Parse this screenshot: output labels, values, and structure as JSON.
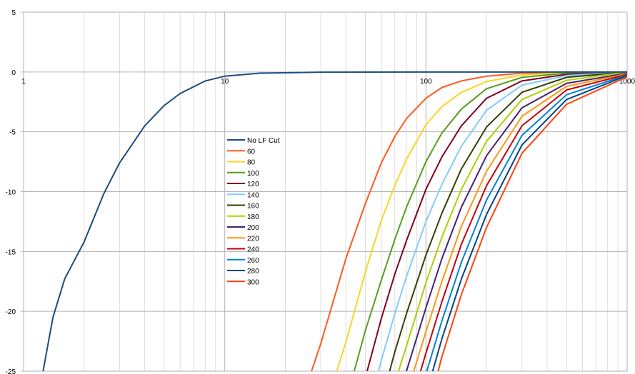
{
  "chart_data": {
    "type": "line",
    "title": "",
    "xlabel": "",
    "ylabel": "",
    "x_scale": "log",
    "xlim": [
      1,
      1000
    ],
    "ylim": [
      -25,
      5
    ],
    "x_ticks": [
      {
        "value": 1,
        "label": "1"
      },
      {
        "value": 10,
        "label": "10"
      },
      {
        "value": 100,
        "label": "100"
      },
      {
        "value": 1000,
        "label": "1000"
      }
    ],
    "y_ticks": [
      {
        "value": 5,
        "label": "5"
      },
      {
        "value": 0,
        "label": "0"
      },
      {
        "value": -5,
        "label": "-5"
      },
      {
        "value": -10,
        "label": "-10"
      },
      {
        "value": -15,
        "label": "-15"
      },
      {
        "value": -20,
        "label": "-20"
      },
      {
        "value": -25,
        "label": "-25"
      }
    ],
    "grid": true,
    "legend_position": "center",
    "series": [
      {
        "name": "No LF Cut",
        "color": "#1a4d80",
        "x": [
          1.25,
          1.4,
          1.6,
          2,
          2.5,
          3,
          4,
          5,
          6,
          8,
          10,
          15,
          30,
          100,
          1000
        ],
        "y": [
          -25,
          -20.5,
          -17.3,
          -14.2,
          -10.2,
          -7.6,
          -4.5,
          -2.8,
          -1.8,
          -0.75,
          -0.35,
          -0.1,
          -0.02,
          0,
          0
        ]
      },
      {
        "name": "60",
        "color": "#ff5a1f",
        "x": [
          27,
          30,
          40,
          50,
          60,
          70,
          80,
          100,
          120,
          150,
          200,
          300,
          500,
          1000
        ],
        "y": [
          -25,
          -22.7,
          -15.6,
          -11.0,
          -7.6,
          -5.4,
          -3.9,
          -2.2,
          -1.3,
          -0.75,
          -0.35,
          -0.1,
          -0.03,
          0
        ]
      },
      {
        "name": "80",
        "color": "#ffd320",
        "x": [
          36,
          40,
          50,
          60,
          70,
          80,
          100,
          120,
          150,
          200,
          300,
          500,
          1000
        ],
        "y": [
          -25,
          -22.6,
          -16.7,
          -12.4,
          -9.5,
          -7.3,
          -4.4,
          -2.9,
          -1.7,
          -0.8,
          -0.25,
          -0.07,
          0
        ]
      },
      {
        "name": "100",
        "color": "#579d1c",
        "x": [
          44,
          50,
          60,
          70,
          80,
          100,
          120,
          150,
          200,
          300,
          500,
          1000
        ],
        "y": [
          -25,
          -21.6,
          -17.4,
          -14.0,
          -11.3,
          -7.5,
          -5.1,
          -3.1,
          -1.4,
          -0.45,
          -0.1,
          0
        ]
      },
      {
        "name": "120",
        "color": "#7e0021",
        "x": [
          51,
          60,
          70,
          80,
          100,
          120,
          150,
          200,
          300,
          500,
          1000
        ],
        "y": [
          -25,
          -20.6,
          -16.9,
          -14.1,
          -9.8,
          -7.1,
          -4.5,
          -2.2,
          -0.75,
          -0.2,
          0
        ]
      },
      {
        "name": "140",
        "color": "#83caff",
        "x": [
          58,
          60,
          70,
          80,
          100,
          120,
          150,
          200,
          300,
          500,
          1000
        ],
        "y": [
          -25,
          -24.1,
          -20.2,
          -17.1,
          -12.5,
          -9.4,
          -6.2,
          -3.2,
          -1.1,
          -0.3,
          0
        ]
      },
      {
        "name": "160",
        "color": "#314004",
        "x": [
          66,
          70,
          80,
          100,
          120,
          150,
          200,
          300,
          500,
          1000
        ],
        "y": [
          -25,
          -23.4,
          -20.2,
          -15.3,
          -11.8,
          -8.1,
          -4.6,
          -1.7,
          -0.45,
          0
        ]
      },
      {
        "name": "180",
        "color": "#aecf00",
        "x": [
          73,
          80,
          100,
          120,
          150,
          200,
          300,
          500,
          1000
        ],
        "y": [
          -25,
          -22.9,
          -17.6,
          -13.8,
          -9.8,
          -5.8,
          -2.3,
          -0.7,
          0
        ]
      },
      {
        "name": "200",
        "color": "#4b1f6f",
        "x": [
          80,
          100,
          120,
          150,
          200,
          300,
          500,
          1000
        ],
        "y": [
          -25,
          -19.7,
          -15.6,
          -11.3,
          -7.0,
          -3.0,
          -0.95,
          -0.1
        ]
      },
      {
        "name": "220",
        "color": "#ff950e",
        "x": [
          87,
          100,
          120,
          150,
          200,
          300,
          500,
          1000
        ],
        "y": [
          -25,
          -21.7,
          -17.5,
          -12.9,
          -8.3,
          -3.7,
          -1.2,
          -0.15
        ]
      },
      {
        "name": "240",
        "color": "#c5000b",
        "x": [
          94,
          100,
          120,
          150,
          200,
          300,
          500,
          1000
        ],
        "y": [
          -25,
          -23.5,
          -19.2,
          -14.4,
          -9.5,
          -4.5,
          -1.5,
          -0.2
        ]
      },
      {
        "name": "260",
        "color": "#0084d1",
        "x": [
          101,
          120,
          150,
          200,
          300,
          500,
          1000
        ],
        "y": [
          -25,
          -20.8,
          -15.9,
          -10.7,
          -5.3,
          -1.9,
          -0.25
        ]
      },
      {
        "name": "280",
        "color": "#004586",
        "x": [
          108,
          120,
          150,
          200,
          300,
          500,
          1000
        ],
        "y": [
          -25,
          -22.3,
          -17.3,
          -11.9,
          -6.1,
          -2.3,
          -0.3
        ]
      },
      {
        "name": "300",
        "color": "#ff420e",
        "x": [
          115,
          120,
          150,
          200,
          300,
          500,
          1000
        ],
        "y": [
          -25,
          -23.8,
          -18.6,
          -13.0,
          -6.8,
          -2.7,
          -0.4
        ]
      }
    ]
  }
}
